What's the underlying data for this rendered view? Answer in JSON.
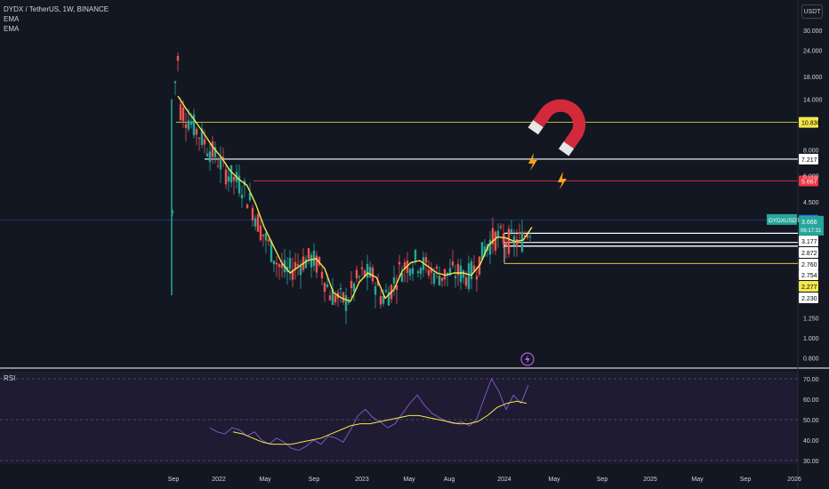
{
  "header": {
    "symbol_line": "DYDX / TetherUS, 1W, BINANCE",
    "indicators": [
      "EMA",
      "EMA"
    ],
    "currency_button": "USDT"
  },
  "rsi": {
    "label": "RSI"
  },
  "colors": {
    "bg": "#131722",
    "up": "#26a69a",
    "down": "#ef5350",
    "ema": "#f5e74b",
    "rsi_line": "#7e57c2",
    "rsi_ma": "#f5e74b",
    "white_level": "#ffffff",
    "yellow_level": "#f5e74b",
    "red_level": "#f23645",
    "current": "#26a69a"
  },
  "icons": {
    "magnet": "magnet-icon",
    "lightning": "lightning-icon",
    "event": "lightning-circle-icon"
  },
  "chart_data": [
    {
      "type": "candlestick",
      "scale": "log",
      "y_ticks": [
        "30.000",
        "24.000",
        "18.000",
        "14.000",
        "8.000",
        "6.000",
        "4.500",
        "3.177",
        "2.872",
        "2.760",
        "2.754",
        "2.230",
        "1.250",
        "1.000",
        "0.800"
      ],
      "x_ticks": [
        "Sep",
        "2022",
        "May",
        "Sep",
        "2023",
        "May",
        "Aug",
        "2024",
        "May",
        "Sep",
        "2025",
        "May",
        "Sep",
        "2026"
      ],
      "levels": [
        {
          "price": 10.83,
          "label": "10.830",
          "color": "yellow"
        },
        {
          "price": 7.217,
          "label": "7.217",
          "color": "white"
        },
        {
          "price": 5.667,
          "label": "5.667",
          "color": "red"
        },
        {
          "price": 3.674,
          "label": "3.674",
          "color": "blue"
        },
        {
          "price": 3.177,
          "label": "3.177",
          "color": "white"
        },
        {
          "price": 2.872,
          "label": "2.872",
          "color": "white"
        },
        {
          "price": 2.76,
          "label": "2.760",
          "color": "white"
        },
        {
          "price": 2.754,
          "label": "2.754",
          "color": "white"
        },
        {
          "price": 2.277,
          "label": "2.277",
          "color": "yellow"
        },
        {
          "price": 2.23,
          "label": "2.230",
          "color": "white"
        }
      ],
      "current_price": {
        "symbol": "DYDXUSDT",
        "price": "3.666",
        "countdown": "06:17:31"
      },
      "ema_path_prices": [
        14.5,
        12.5,
        11.0,
        9.6,
        8.3,
        7.4,
        6.4,
        5.8,
        5.4,
        4.4,
        3.4,
        2.8,
        2.3,
        2.05,
        2.2,
        2.35,
        2.4,
        2.15,
        1.65,
        1.55,
        1.5,
        1.85,
        2.05,
        1.95,
        1.55,
        1.7,
        2.1,
        2.3,
        2.35,
        2.2,
        2.05,
        2.0,
        2.05,
        2.05,
        2.0,
        2.25,
        2.8,
        3.05,
        3.02,
        2.9,
        2.95,
        3.4
      ],
      "candles_weekly_ohlc_estimated": true
    },
    {
      "type": "line",
      "name": "RSI",
      "y_ticks": [
        "70.00",
        "60.00",
        "50.00",
        "40.00",
        "30.00"
      ],
      "levels": [
        70,
        50,
        30
      ],
      "rsi_values": [
        46,
        44,
        43,
        46,
        45,
        42,
        44,
        40,
        38,
        41,
        39,
        36,
        35,
        37,
        40,
        38,
        42,
        41,
        39,
        45,
        52,
        55,
        51,
        49,
        46,
        48,
        53,
        58,
        62,
        57,
        53,
        51,
        49,
        48,
        49,
        47,
        50,
        60,
        70,
        64,
        55,
        62,
        58,
        67
      ],
      "rsi_ma_values": [
        44,
        43,
        41,
        39,
        38,
        38,
        38,
        39,
        40,
        41,
        43,
        45,
        47,
        48,
        48,
        49,
        50,
        51,
        52,
        52,
        51,
        50,
        49,
        48,
        48,
        49,
        52,
        56,
        58,
        59,
        58
      ]
    }
  ]
}
